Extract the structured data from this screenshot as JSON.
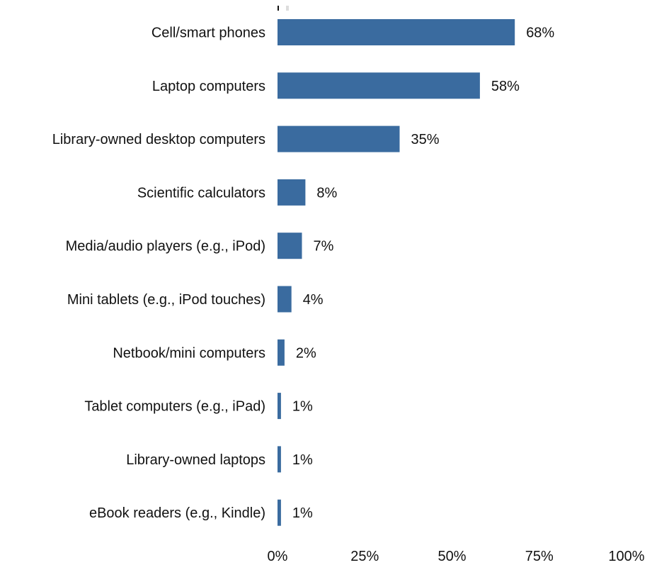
{
  "chart_data": {
    "type": "bar",
    "orientation": "horizontal",
    "categories": [
      "Cell/smart phones",
      "Laptop computers",
      "Library-owned desktop computers",
      "Scientific calculators",
      "Media/audio players (e.g., iPod)",
      "Mini tablets (e.g., iPod touches)",
      "Netbook/mini computers",
      "Tablet computers (e.g., iPad)",
      "Library-owned laptops",
      "eBook readers (e.g., Kindle)"
    ],
    "values": [
      68,
      58,
      35,
      8,
      7,
      4,
      2,
      1,
      1,
      1
    ],
    "value_labels": [
      "68%",
      "58%",
      "35%",
      "8%",
      "7%",
      "4%",
      "2%",
      "1%",
      "1%",
      "1%"
    ],
    "xlim": [
      0,
      100
    ],
    "x_ticks": [
      0,
      25,
      50,
      75,
      100
    ],
    "x_tick_labels": [
      "0%",
      "25%",
      "50%",
      "75%",
      "100%"
    ],
    "bar_color": "#3a6b9f",
    "grid": false,
    "legend": "none"
  }
}
